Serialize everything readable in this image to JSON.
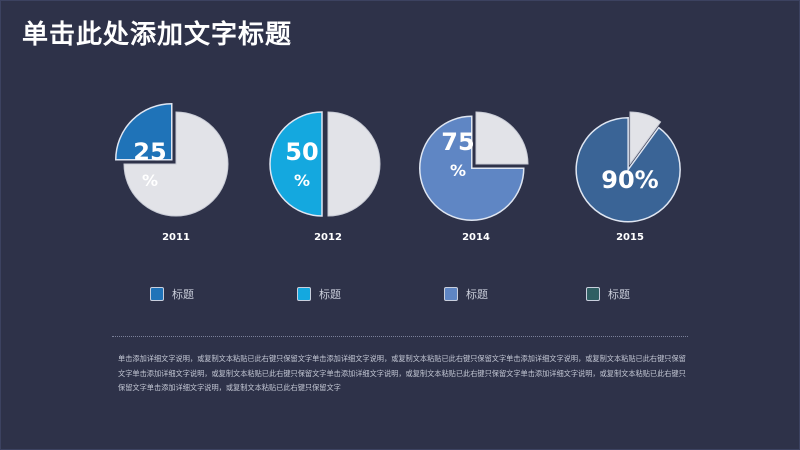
{
  "page": {
    "title": "单击此处添加文字标题",
    "body_text": "单击添加详细文字说明，或复制文本粘贴已此右键只保留文字单击添加详细文字说明，或复制文本粘贴已此右键只保留文字单击添加详细文字说明，或复制文本粘贴已此右键只保留文字单击添加详细文字说明，或复制文本粘贴已此右键只保留文字单击添加详细文字说明，或复制文本粘贴已此右键只保留文字单击添加详细文字说明，或复制文本粘贴已此右键只保留文字单击添加详细文字说明，或复制文本粘贴已此右键只保留文字"
  },
  "colors": {
    "background": "#2e3249",
    "remainder": "#e2e3e8",
    "series": [
      "#1f73b8",
      "#14a8df",
      "#5f86c4",
      "#3a6496"
    ]
  },
  "legend": [
    {
      "label": "标题",
      "color": "#1f73b8"
    },
    {
      "label": "标题",
      "color": "#14a8df"
    },
    {
      "label": "标题",
      "color": "#5f86c4"
    },
    {
      "label": "标题",
      "color": "#2f5f63"
    }
  ],
  "chart_data": {
    "type": "pie",
    "charts": [
      {
        "year": "2011",
        "value": 25,
        "label": "25",
        "unit": "%",
        "color": "#1f73b8"
      },
      {
        "year": "2012",
        "value": 50,
        "label": "50",
        "unit": "%",
        "color": "#14a8df"
      },
      {
        "year": "2014",
        "value": 75,
        "label": "75",
        "unit": "%",
        "color": "#5f86c4"
      },
      {
        "year": "2015",
        "value": 90,
        "label": "90%",
        "unit": "",
        "color": "#3a6496"
      }
    ]
  }
}
